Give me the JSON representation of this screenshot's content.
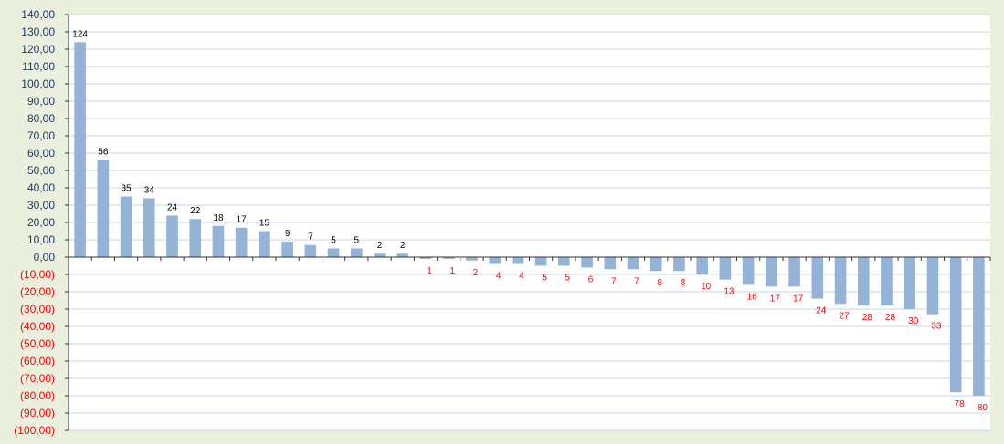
{
  "chart_data": {
    "type": "bar",
    "title": "",
    "xlabel": "",
    "ylabel": "",
    "ylim": [
      -100,
      140
    ],
    "ytick_step": 10,
    "ytick_labels": [
      "140,00",
      "130,00",
      "120,00",
      "110,00",
      "100,00",
      "90,00",
      "80,00",
      "70,00",
      "60,00",
      "50,00",
      "40,00",
      "30,00",
      "20,00",
      "10,00",
      "0,00",
      "(10,00)",
      "(20,00)",
      "(30,00)",
      "(40,00)",
      "(50,00)",
      "(60,00)",
      "(70,00)",
      "(80,00)",
      "(90,00)",
      "(100,00)"
    ],
    "grid": true,
    "legend": "none",
    "values": [
      124,
      56,
      35,
      34,
      24,
      22,
      18,
      17,
      15,
      9,
      7,
      5,
      5,
      2,
      2,
      -1,
      -1,
      -2,
      -4,
      -4,
      -5,
      -5,
      -6,
      -7,
      -7,
      -8,
      -8,
      -10,
      -13,
      -16,
      -17,
      -17,
      -24,
      -27,
      -28,
      -28,
      -30,
      -33,
      -78,
      -80
    ],
    "data_labels": [
      "124",
      "56",
      "35",
      "34",
      "24",
      "22",
      "18",
      "17",
      "15",
      "9",
      "7",
      "5",
      "5",
      "2",
      "2",
      "1",
      "1",
      "2",
      "4",
      "4",
      "5",
      "5",
      "6",
      "7",
      "7",
      "8",
      "8",
      "10",
      "13",
      "16",
      "17",
      "17",
      "24",
      "27",
      "28",
      "28",
      "30",
      "33",
      "78",
      "80"
    ]
  },
  "colors": {
    "background": "#ebf0de",
    "plot_area": "#ffffff",
    "bar": "#95b3d7",
    "gridline": "#c5d6ea",
    "positive_tick": "#1f3864",
    "negative_tick": "#ff0000",
    "positive_label": "#000000",
    "negative_label": "#ff0000"
  }
}
